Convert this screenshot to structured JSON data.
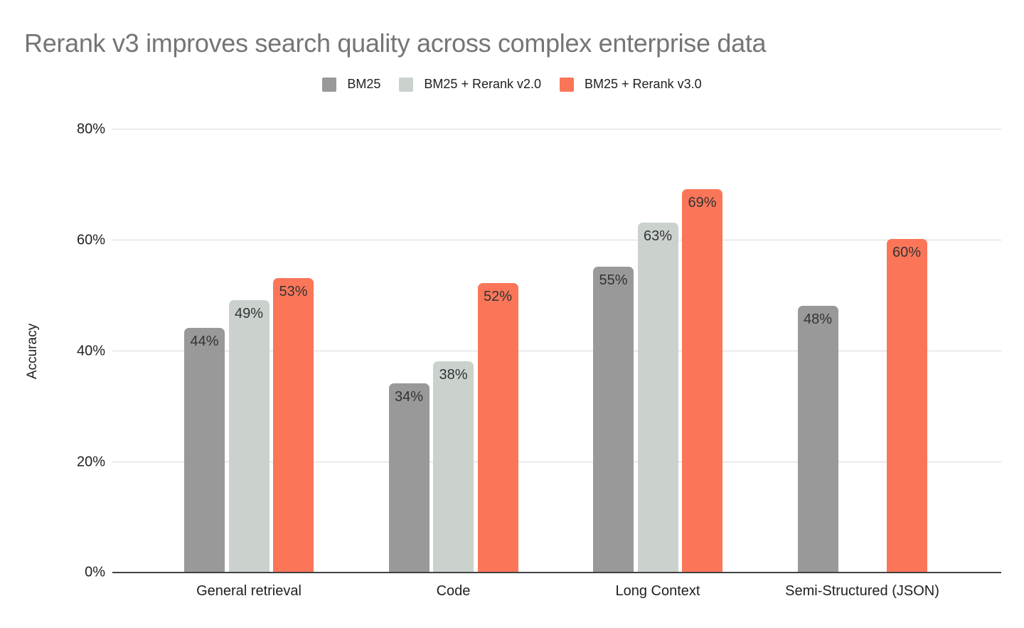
{
  "chart_data": {
    "type": "bar",
    "title": "Rerank v3 improves search quality across complex enterprise data",
    "xlabel": "",
    "ylabel": "Accuracy",
    "categories": [
      "General retrieval",
      "Code",
      "Long Context",
      "Semi-Structured (JSON)"
    ],
    "series": [
      {
        "name": "BM25",
        "color": "#999999",
        "values": [
          44,
          34,
          55,
          48
        ]
      },
      {
        "name": "BM25 + Rerank v2.0",
        "color": "#CBD2CE",
        "values": [
          49,
          38,
          63,
          null
        ]
      },
      {
        "name": "BM25 + Rerank v3.0",
        "color": "#FB7659",
        "values": [
          53,
          52,
          69,
          60
        ]
      }
    ],
    "value_suffix": "%",
    "ylim": [
      0,
      80
    ],
    "ytick_values": [
      0,
      20,
      40,
      60,
      80
    ],
    "ytick_labels": [
      "0%",
      "20%",
      "40%",
      "60%",
      "80%"
    ],
    "grid": true,
    "legend_position": "top",
    "data_label_position": "inside-top"
  },
  "style_colors": {
    "title_text": "#757575",
    "axis_text": "#202124",
    "data_label_text": "#333333",
    "gridline": "#D9D9D9",
    "axis_line": "#424242",
    "background": "#FFFFFF"
  }
}
